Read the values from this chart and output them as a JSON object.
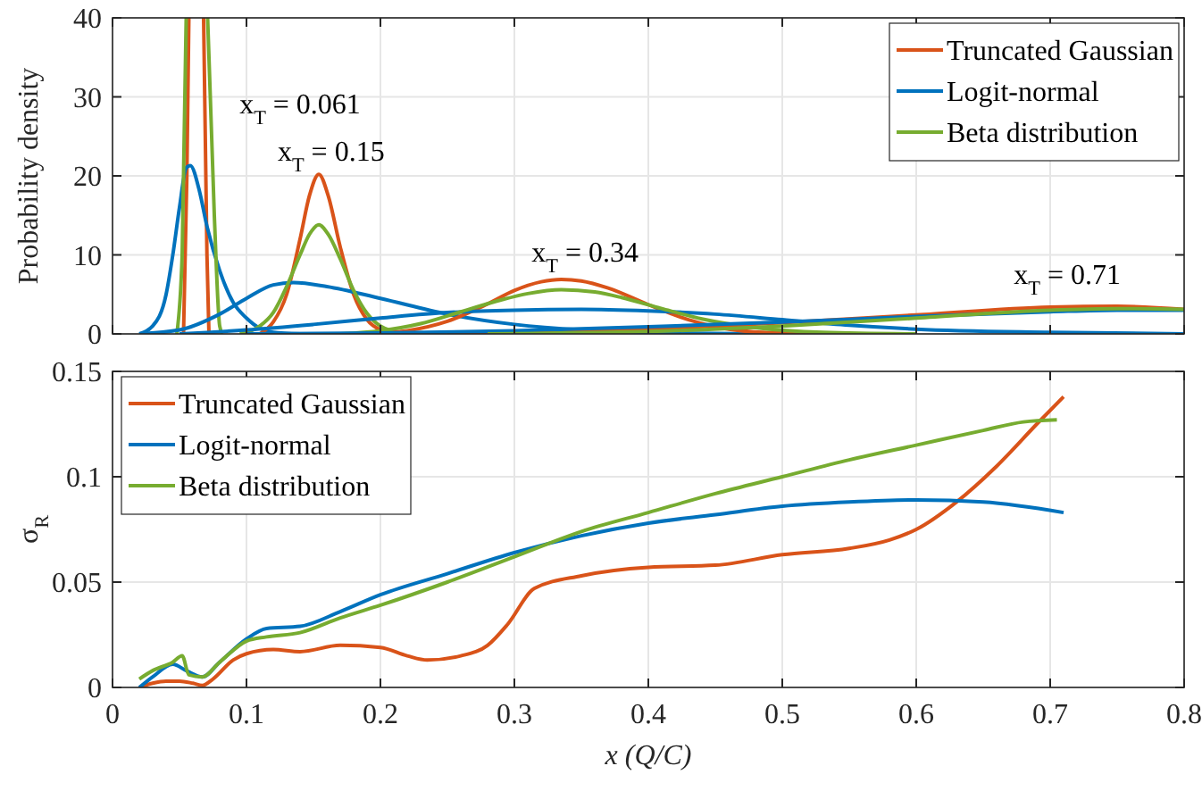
{
  "chart_data": [
    {
      "type": "line",
      "ylabel": "Probability density",
      "xlim": [
        0,
        0.8
      ],
      "xticks": [
        0,
        0.1,
        0.2,
        0.3,
        0.4,
        0.5,
        0.6,
        0.7,
        0.8
      ],
      "ylim": [
        0,
        40
      ],
      "yticks": [
        0,
        10,
        20,
        30,
        40
      ],
      "grid": true,
      "legend": "top right",
      "tick_labels": "y",
      "annotations": [
        "x$_{T}$ = 0.061",
        "x$_{T}$ = 0.15",
        "x$_{T}$ = 0.34",
        "x$_{T}$ = 0.71"
      ],
      "series": [
        {
          "name": "Truncated Gaussian",
          "color": "#d95319",
          "x": [
            0.053,
            0.0555,
            0.057,
            0.063,
            0.068,
            0.0705,
            0.072
          ],
          "values": [
            0,
            20,
            40,
            null,
            40,
            10,
            0
          ]
        },
        {
          "name": "Logit-normal",
          "color": "#0072bd",
          "x": [
            0.02,
            0.03,
            0.04,
            0.045,
            0.05,
            0.055,
            0.058,
            0.065,
            0.07,
            0.08,
            0.09,
            0.1,
            0.11,
            0.12,
            0.14
          ],
          "values": [
            0,
            1,
            5,
            10,
            16,
            21,
            21.3,
            18,
            14,
            8,
            4,
            2,
            0.7,
            0.2,
            0
          ]
        },
        {
          "name": "Beta distribution",
          "color": "#77ac30",
          "x": [
            0.048,
            0.052,
            0.055,
            0.063,
            0.071,
            0.076,
            0.08,
            0.082
          ],
          "values": [
            0,
            10,
            40,
            null,
            40,
            15,
            1,
            0
          ]
        },
        {
          "color": "#d95319",
          "x": [
            0.11,
            0.12,
            0.13,
            0.14,
            0.147,
            0.154,
            0.161,
            0.17,
            0.18,
            0.19,
            0.2,
            0.21,
            0.225
          ],
          "values": [
            0,
            1.5,
            5,
            12,
            17.5,
            20.2,
            17.5,
            11,
            5,
            1.8,
            0.5,
            0.1,
            0
          ]
        },
        {
          "color": "#0072bd",
          "x": [
            0.02,
            0.05,
            0.08,
            0.1,
            0.12,
            0.135,
            0.16,
            0.2,
            0.25,
            0.3,
            0.35,
            0.4,
            0.5
          ],
          "values": [
            0,
            0.5,
            2.5,
            4.5,
            6.2,
            6.5,
            6,
            4.5,
            2.5,
            1.2,
            0.5,
            0.2,
            0
          ]
        },
        {
          "color": "#77ac30",
          "x": [
            0.095,
            0.11,
            0.12,
            0.13,
            0.14,
            0.147,
            0.154,
            0.161,
            0.17,
            0.18,
            0.19,
            0.2,
            0.215,
            0.235
          ],
          "values": [
            0,
            1,
            2.7,
            6,
            10,
            12.6,
            13.8,
            12.6,
            9.5,
            5.5,
            2.6,
            1,
            0.2,
            0
          ]
        },
        {
          "color": "#d95319",
          "x": [
            0.19,
            0.22,
            0.25,
            0.28,
            0.3,
            0.32,
            0.335,
            0.35,
            0.37,
            0.4,
            0.43,
            0.46,
            0.5,
            0.55
          ],
          "values": [
            0,
            0.4,
            1.6,
            3.8,
            5.5,
            6.6,
            6.9,
            6.7,
            5.8,
            3.7,
            1.8,
            0.6,
            0.1,
            0
          ]
        },
        {
          "color": "#0072bd",
          "x": [
            0.05,
            0.1,
            0.15,
            0.2,
            0.25,
            0.3,
            0.35,
            0.4,
            0.45,
            0.5,
            0.55,
            0.6,
            0.7,
            0.8
          ],
          "values": [
            0,
            0.5,
            1.2,
            2,
            2.7,
            3,
            3.1,
            2.9,
            2.5,
            1.8,
            1.1,
            0.6,
            0.2,
            0
          ]
        },
        {
          "color": "#77ac30",
          "x": [
            0.17,
            0.2,
            0.23,
            0.26,
            0.29,
            0.31,
            0.335,
            0.36,
            0.38,
            0.41,
            0.44,
            0.48,
            0.53,
            0.6
          ],
          "values": [
            0,
            0.4,
            1.3,
            2.8,
            4.3,
            5.1,
            5.6,
            5.3,
            4.6,
            3.2,
            1.9,
            0.8,
            0.2,
            0
          ]
        },
        {
          "color": "#d95319",
          "x": [
            0.25,
            0.3,
            0.4,
            0.5,
            0.6,
            0.7,
            0.75,
            0.8
          ],
          "values": [
            0,
            0.1,
            0.6,
            1.4,
            2.4,
            3.4,
            3.5,
            3.1
          ]
        },
        {
          "color": "#0072bd",
          "x": [
            0.1,
            0.2,
            0.3,
            0.4,
            0.5,
            0.6,
            0.7,
            0.75,
            0.8
          ],
          "values": [
            0,
            0.1,
            0.4,
            0.9,
            1.5,
            2.2,
            2.8,
            3,
            3
          ]
        },
        {
          "color": "#77ac30",
          "x": [
            0.28,
            0.4,
            0.5,
            0.6,
            0.7,
            0.75,
            0.8
          ],
          "values": [
            0,
            0.3,
            1,
            2,
            3,
            3.2,
            3.1
          ]
        }
      ]
    },
    {
      "type": "line",
      "xlabel": "x (Q/C)",
      "ylabel": "σ$_{R}$",
      "xlim": [
        0,
        0.8
      ],
      "xticks": [
        0,
        0.1,
        0.2,
        0.3,
        0.4,
        0.5,
        0.6,
        0.7,
        0.8
      ],
      "ylim": [
        0,
        0.15
      ],
      "yticks": [
        0,
        0.05,
        0.1,
        0.15
      ],
      "grid": true,
      "legend": "top left",
      "series": [
        {
          "name": "Truncated Gaussian",
          "color": "#d95319",
          "x": [
            0.02,
            0.03,
            0.04,
            0.05,
            0.06,
            0.067,
            0.075,
            0.09,
            0.1,
            0.12,
            0.14,
            0.17,
            0.2,
            0.22,
            0.235,
            0.26,
            0.28,
            0.295,
            0.315,
            0.35,
            0.4,
            0.45,
            0.5,
            0.55,
            0.58,
            0.6,
            0.63,
            0.66,
            0.69,
            0.71
          ],
          "values": [
            0,
            0.002,
            0.003,
            0.003,
            0.002,
            0.001,
            0.004,
            0.013,
            0.016,
            0.018,
            0.017,
            0.02,
            0.019,
            0.015,
            0.013,
            0.015,
            0.02,
            0.03,
            0.047,
            0.053,
            0.057,
            0.058,
            0.063,
            0.066,
            0.07,
            0.075,
            0.088,
            0.105,
            0.125,
            0.138
          ]
        },
        {
          "name": "Logit-normal",
          "color": "#0072bd",
          "x": [
            0.02,
            0.03,
            0.045,
            0.055,
            0.067,
            0.08,
            0.1,
            0.115,
            0.14,
            0.17,
            0.2,
            0.25,
            0.3,
            0.35,
            0.4,
            0.45,
            0.5,
            0.55,
            0.6,
            0.65,
            0.71
          ],
          "values": [
            0,
            0.005,
            0.011,
            0.008,
            0.005,
            0.012,
            0.023,
            0.028,
            0.029,
            0.036,
            0.044,
            0.054,
            0.064,
            0.072,
            0.078,
            0.082,
            0.086,
            0.088,
            0.089,
            0.088,
            0.083
          ]
        },
        {
          "name": "Beta distribution",
          "color": "#77ac30",
          "x": [
            0.02,
            0.03,
            0.045,
            0.052,
            0.057,
            0.067,
            0.08,
            0.1,
            0.115,
            0.14,
            0.17,
            0.2,
            0.25,
            0.3,
            0.35,
            0.4,
            0.45,
            0.5,
            0.55,
            0.6,
            0.65,
            0.68,
            0.705
          ],
          "values": [
            0.004,
            0.008,
            0.012,
            0.015,
            0.006,
            0.005,
            0.012,
            0.022,
            0.024,
            0.026,
            0.033,
            0.039,
            0.05,
            0.062,
            0.074,
            0.083,
            0.092,
            0.1,
            0.108,
            0.115,
            0.122,
            0.126,
            0.127
          ]
        }
      ]
    }
  ]
}
